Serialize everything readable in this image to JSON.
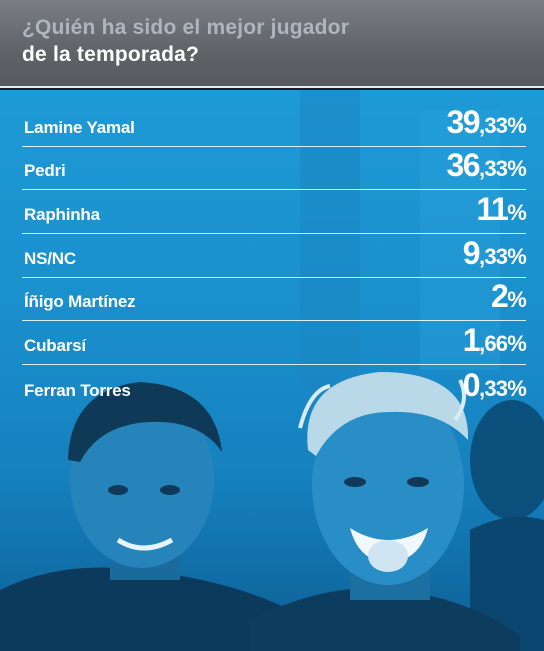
{
  "header": {
    "line1": "¿Quién ha sido el mejor jugador",
    "line2": "de la temporada?"
  },
  "results": [
    {
      "name": "Lamine Yamal",
      "value_int": "39",
      "value_dec": ",33%"
    },
    {
      "name": "Pedri",
      "value_int": "36",
      "value_dec": ",33%"
    },
    {
      "name": "Raphinha",
      "value_int": "11",
      "value_dec": "%"
    },
    {
      "name": "NS/NC",
      "value_int": "9",
      "value_dec": ",33%"
    },
    {
      "name": "Íñigo Martínez",
      "value_int": "2",
      "value_dec": "%"
    },
    {
      "name": "Cubarsí",
      "value_int": "1",
      "value_dec": ",66%"
    },
    {
      "name": "Ferran Torres",
      "value_int": "0",
      "value_dec": ",33%"
    }
  ],
  "colors": {
    "header_bg": "#5f6367",
    "header_line1": "#aeb6bd",
    "panel_blue": "#1a8fcc",
    "text": "#ffffff"
  }
}
